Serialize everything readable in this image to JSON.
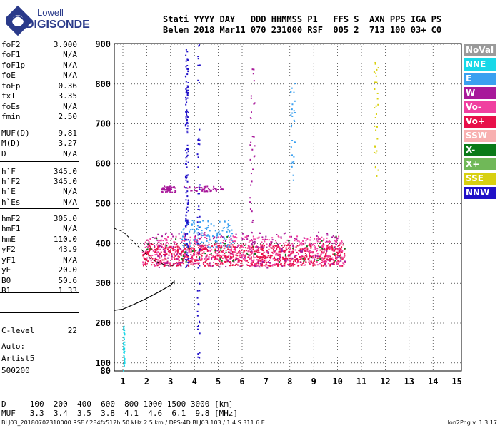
{
  "logo": {
    "line1": "Lowell",
    "line2": "DIGISONDE"
  },
  "header": {
    "line1": "Stati YYYY DAY   DDD HHMMSS P1   FFS S  AXN PPS IGA PS",
    "line2": "Belem 2018 Mar11 070 231000 RSF  005 2  713 100 03+ C0"
  },
  "parameters": [
    {
      "key": "foF2",
      "value": "3.000"
    },
    {
      "key": "foF1",
      "value": "N/A"
    },
    {
      "key": "foF1p",
      "value": "N/A"
    },
    {
      "key": "foE",
      "value": "N/A"
    },
    {
      "key": "foEp",
      "value": "0.36"
    },
    {
      "key": "fxI",
      "value": "3.35"
    },
    {
      "key": "foEs",
      "value": "N/A"
    },
    {
      "key": "fmin",
      "value": "2.50"
    },
    {
      "key": "MUF(D)",
      "value": "9.81"
    },
    {
      "key": "M(D)",
      "value": "3.27"
    },
    {
      "key": "D",
      "value": "N/A"
    },
    {
      "key": "h`F",
      "value": "345.0"
    },
    {
      "key": "h`F2",
      "value": "345.0"
    },
    {
      "key": "h`E",
      "value": "N/A"
    },
    {
      "key": "h`Es",
      "value": "N/A"
    },
    {
      "key": "hmF2",
      "value": "305.0"
    },
    {
      "key": "hmF1",
      "value": "N/A"
    },
    {
      "key": "hmE",
      "value": "110.0"
    },
    {
      "key": "yF2",
      "value": "43.9"
    },
    {
      "key": "yF1",
      "value": "N/A"
    },
    {
      "key": "yE",
      "value": "20.0"
    },
    {
      "key": "B0",
      "value": "50.6"
    },
    {
      "key": "B1",
      "value": "1.33"
    },
    {
      "key": "C-level",
      "value": "22"
    }
  ],
  "autoscaling": {
    "line1": "Auto:",
    "line2": "Artist5",
    "line3": "500200"
  },
  "legend": [
    {
      "label": "NoVal",
      "bg": "#9a9a9a",
      "fg": "#ffffff"
    },
    {
      "label": "NNE",
      "bg": "#18d8e8",
      "fg": "#ffffff"
    },
    {
      "label": "E",
      "bg": "#3aa0f0",
      "fg": "#ffffff"
    },
    {
      "label": "W",
      "bg": "#a8189a",
      "fg": "#ffffff"
    },
    {
      "label": "Vo-",
      "bg": "#f040a0",
      "fg": "#ffffff"
    },
    {
      "label": "Vo+",
      "bg": "#e8104a",
      "fg": "#ffffff"
    },
    {
      "label": "SSW",
      "bg": "#f8b0b0",
      "fg": "#ffffff"
    },
    {
      "label": "X-",
      "bg": "#0a7a18",
      "fg": "#ffffff"
    },
    {
      "label": "X+",
      "bg": "#70b858",
      "fg": "#ffffff"
    },
    {
      "label": "SSE",
      "bg": "#d8d010",
      "fg": "#ffffff"
    },
    {
      "label": "NNW",
      "bg": "#2010c8",
      "fg": "#ffffff"
    }
  ],
  "muf_table": {
    "line1": "D     100  200  400  600  800 1000 1500 3000 [km]",
    "line2": "MUF   3.3  3.4  3.5  3.8  4.1  4.6  6.1  9.8 [MHz]"
  },
  "footer": {
    "left": "BLJ03_20180702310000.RSF / 284fx512h 50 kHz 2.5 km / DPS-4D BLJ03 103 / 1.4 S 311.6 E",
    "right": "Ion2Png v. 1.3.17"
  },
  "chart_data": {
    "type": "scatter",
    "title": "",
    "xlabel": "",
    "ylabel": "",
    "x_ticks": [
      "1",
      "2",
      "3",
      "4",
      "5",
      "6",
      "7",
      "8",
      "9",
      "10",
      "11",
      "12",
      "13",
      "14",
      "15"
    ],
    "y_ticks": [
      "80",
      "100",
      "200",
      "300",
      "400",
      "500",
      "600",
      "700",
      "800",
      "900"
    ],
    "xlim": [
      0.6,
      15
    ],
    "ylim": [
      80,
      900
    ],
    "grid": true,
    "y_grid_values": [
      100,
      200,
      300,
      400,
      500,
      600,
      700,
      800,
      900
    ],
    "series": [
      {
        "name": "Vo+",
        "color": "#e8104a",
        "clusters": [
          {
            "x": [
              1.8,
              10.3
            ],
            "y": [
              345,
              400
            ],
            "n": 900
          }
        ]
      },
      {
        "name": "Vo-",
        "color": "#f040a0",
        "clusters": [
          {
            "x": [
              1.8,
              10.3
            ],
            "y": [
              345,
              420
            ],
            "n": 500
          }
        ]
      },
      {
        "name": "W",
        "color": "#a8189a",
        "clusters": [
          {
            "x": [
              2.6,
              3.2
            ],
            "y": [
              530,
              545
            ],
            "n": 60
          },
          {
            "x": [
              3.5,
              5.2
            ],
            "y": [
              532,
              545
            ],
            "n": 50
          },
          {
            "x": [
              2.0,
              10.3
            ],
            "y": [
              340,
              430
            ],
            "n": 200
          },
          {
            "x": [
              6.3,
              6.5
            ],
            "y": [
              380,
              840
            ],
            "n": 35
          }
        ]
      },
      {
        "name": "E",
        "color": "#3aa0f0",
        "clusters": [
          {
            "x": [
              3.4,
              5.6
            ],
            "y": [
              390,
              460
            ],
            "n": 120
          },
          {
            "x": [
              8.0,
              8.2
            ],
            "y": [
              560,
              820
            ],
            "n": 30
          }
        ]
      },
      {
        "name": "NNW",
        "color": "#2010c8",
        "clusters": [
          {
            "x": [
              3.6,
              3.72
            ],
            "y": [
              340,
              890
            ],
            "n": 140
          },
          {
            "x": [
              4.1,
              4.2
            ],
            "y": [
              90,
              900
            ],
            "n": 60
          }
        ]
      },
      {
        "name": "X-",
        "color": "#0a7a18",
        "clusters": [
          {
            "x": [
              2.0,
              10.3
            ],
            "y": [
              355,
              420
            ],
            "n": 60
          }
        ]
      },
      {
        "name": "NNE",
        "color": "#18d8e8",
        "clusters": [
          {
            "x": [
              1.0,
              1.05
            ],
            "y": [
              80,
              200
            ],
            "n": 40
          }
        ]
      },
      {
        "name": "SSE",
        "color": "#d8d010",
        "clusters": [
          {
            "x": [
              11.5,
              11.7
            ],
            "y": [
              560,
              860
            ],
            "n": 30
          }
        ]
      }
    ],
    "profile_line": {
      "x": [
        1.0,
        1.5,
        2.0,
        2.5,
        3.0,
        3.15
      ],
      "y": [
        235,
        248,
        262,
        278,
        295,
        305
      ],
      "color": "#000000"
    },
    "dashed_trace": {
      "x": [
        1.0,
        1.6,
        2.2,
        2.8,
        3.2
      ],
      "y": [
        430,
        395,
        360,
        345,
        345
      ],
      "color": "#000000"
    }
  }
}
